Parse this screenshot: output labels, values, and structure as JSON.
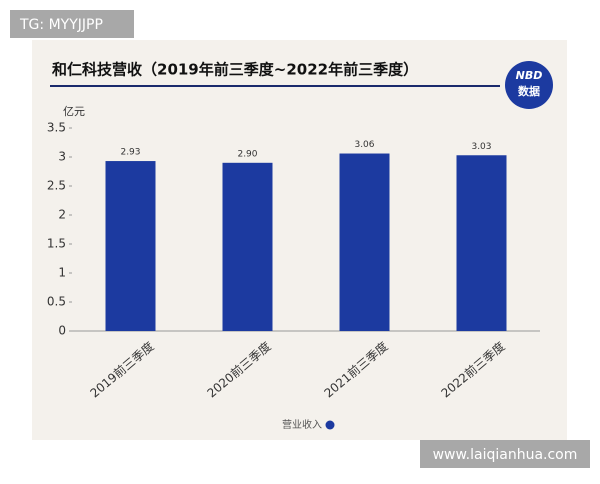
{
  "watermarks": {
    "top_left": "TG: MYYJJPP",
    "bottom_right": "www.laiqianhua.com"
  },
  "logo": {
    "line1": "NBD",
    "line2": "数据"
  },
  "chart_data": {
    "type": "bar",
    "title": "和仁科技营收（2019年前三季度~2022年前三季度）",
    "ylabel": "亿元",
    "categories": [
      "2019前三季度",
      "2020前三季度",
      "2021前三季度",
      "2022前三季度"
    ],
    "series": [
      {
        "name": "营业收入",
        "color": "#1c3aa0",
        "values": [
          2.93,
          2.9,
          3.06,
          3.03
        ],
        "value_labels": [
          "2.93",
          "2.90",
          "3.06",
          "3.03"
        ]
      }
    ],
    "ylim": [
      0,
      3.5
    ],
    "yticks": [
      0,
      0.5,
      1,
      1.5,
      2,
      2.5,
      3,
      3.5
    ],
    "grid": false,
    "legend": "bottom"
  }
}
